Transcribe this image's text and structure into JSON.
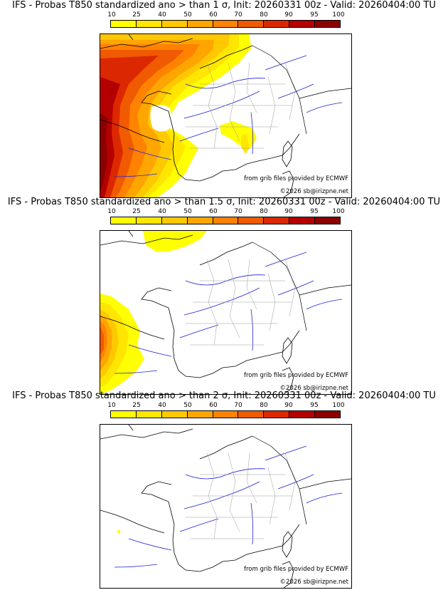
{
  "legend": {
    "labels": [
      "10",
      "25",
      "40",
      "50",
      "60",
      "70",
      "80",
      "90",
      "95",
      "100"
    ],
    "colors": [
      "#ffff00",
      "#ffe600",
      "#ffc800",
      "#ffa500",
      "#ff8200",
      "#f05a00",
      "#dc2800",
      "#b40000",
      "#8c0000",
      "#5a0000"
    ]
  },
  "colors": {
    "coast": "#000000",
    "rivers": "#1f1fd6",
    "borders": "#9a9a9a"
  },
  "panels": [
    {
      "title": "IFS - Probas T850  standardized ano > than 1 σ, Init: 20260331 00z - Valid: 20260404:00 TU",
      "source_credit": "from grib files provided by ECMWF",
      "copyright": "©2026 sb@irizpne.net"
    },
    {
      "title": "IFS - Probas T850  standardized ano > than 1.5 σ, Init: 20260331 00z - Valid: 20260404:00 TU",
      "source_credit": "from grib files provided by ECMWF",
      "copyright": "©2026 sb@irizpne.net"
    },
    {
      "title": "IFS - Probas T850  standardized ano > than 2 σ, Init: 20260331 00z - Valid: 20260404:00 TU",
      "source_credit": "from grib files provided by ECMWF",
      "copyright": "©2026 sb@irizpne.net"
    }
  ]
}
